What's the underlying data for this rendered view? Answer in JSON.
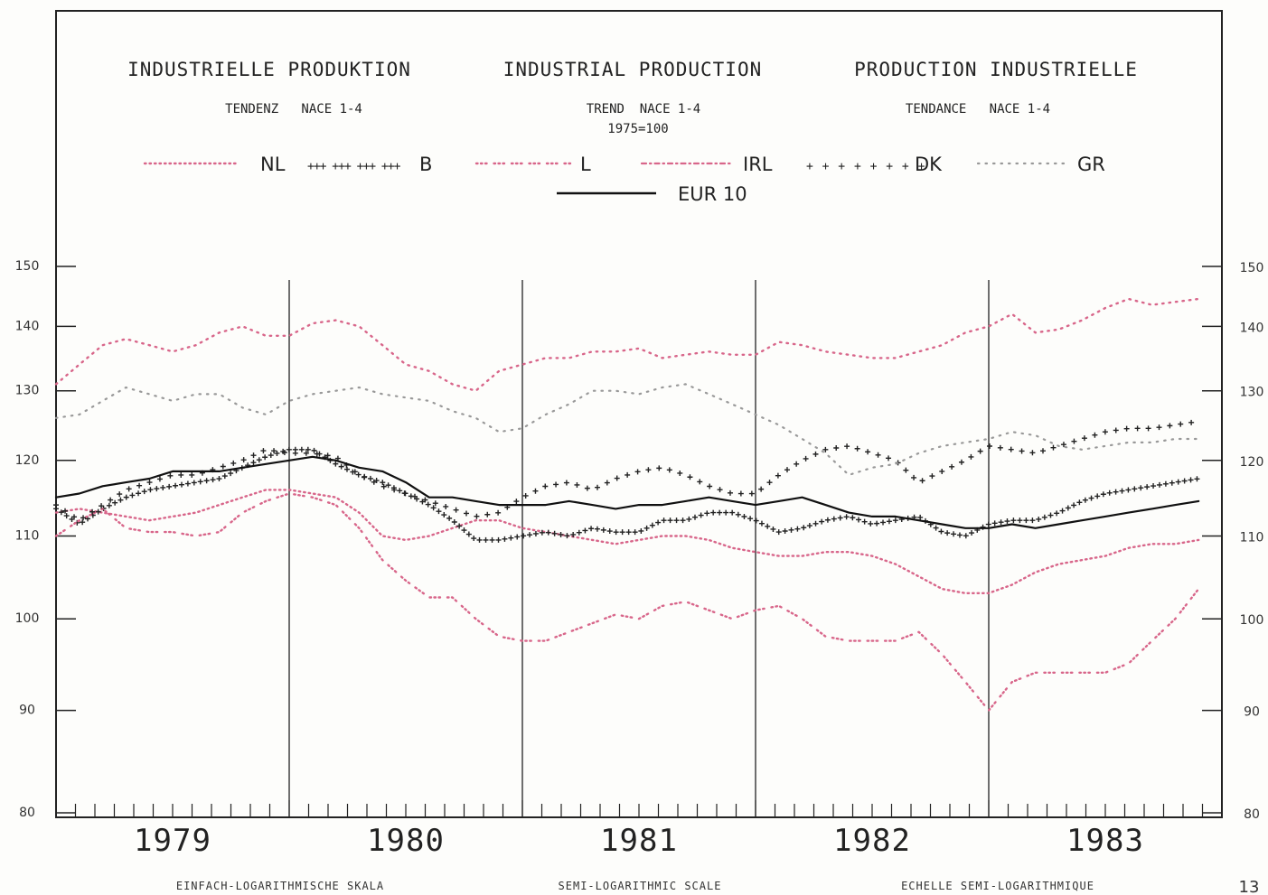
{
  "titles": {
    "de": "INDUSTRIELLE PRODUKTION",
    "en": "INDUSTRIAL PRODUCTION",
    "fr": "PRODUCTION INDUSTRIELLE"
  },
  "subtitles": {
    "de": "TENDENZ   NACE 1-4",
    "en": "TREND  NACE 1-4",
    "en_base": "1975=100",
    "fr": "TENDANCE   NACE 1-4"
  },
  "footer": {
    "de": "EINFACH-LOGARITHMISCHE SKALA",
    "en": "SEMI-LOGARITHMIC SCALE",
    "fr": "ECHELLE SEMI-LOGARITHMIQUE"
  },
  "page_number": "13",
  "chart_data": {
    "type": "line",
    "scale": "semi-logarithmic",
    "ylim": [
      80,
      150
    ],
    "y_ticks": [
      "80",
      "90",
      "100",
      "110",
      "120",
      "130",
      "140",
      "150"
    ],
    "x_range": [
      1979.0,
      1984.0
    ],
    "year_labels": [
      "1979",
      "1980",
      "1981",
      "1982",
      "1983"
    ],
    "year_dividers": [
      1980.0,
      1981.0,
      1982.0,
      1983.0
    ],
    "grid": false,
    "legend_position": "top",
    "series": [
      {
        "name": "NL",
        "style": "dotted",
        "color": "#d8668a",
        "x": [
          1979.0,
          1979.1,
          1979.2,
          1979.3,
          1979.4,
          1979.5,
          1979.6,
          1979.7,
          1979.8,
          1979.9,
          1980.0,
          1980.1,
          1980.2,
          1980.3,
          1980.4,
          1980.5,
          1980.6,
          1980.7,
          1980.8,
          1980.9,
          1981.0,
          1981.1,
          1981.2,
          1981.3,
          1981.4,
          1981.5,
          1981.6,
          1981.7,
          1981.8,
          1981.9,
          1982.0,
          1982.1,
          1982.2,
          1982.3,
          1982.4,
          1982.5,
          1982.6,
          1982.7,
          1982.8,
          1982.9,
          1983.0,
          1983.1,
          1983.2,
          1983.3,
          1983.4,
          1983.5,
          1983.6,
          1983.7,
          1983.8,
          1983.9
        ],
        "y": [
          113,
          113.5,
          113,
          112.5,
          112,
          112.5,
          113,
          114,
          115,
          116,
          116,
          115.5,
          115,
          113,
          110,
          109.5,
          110,
          111,
          112,
          112,
          111,
          110.5,
          110,
          109.5,
          109,
          109.5,
          110,
          110,
          109.5,
          108.5,
          108,
          107.5,
          107.5,
          108,
          108,
          107.5,
          106.5,
          105,
          103.5,
          103,
          103,
          104,
          105.5,
          106.5,
          107,
          107.5,
          108.5,
          109,
          109,
          109.5
        ]
      },
      {
        "name": "B",
        "style": "plus-dense",
        "color": "#222222",
        "x": [
          1979.0,
          1979.1,
          1979.2,
          1979.3,
          1979.4,
          1979.5,
          1979.6,
          1979.7,
          1979.8,
          1979.9,
          1980.0,
          1980.1,
          1980.2,
          1980.3,
          1980.4,
          1980.5,
          1980.6,
          1980.7,
          1980.8,
          1980.9,
          1981.0,
          1981.1,
          1981.2,
          1981.3,
          1981.4,
          1981.5,
          1981.6,
          1981.7,
          1981.8,
          1981.9,
          1982.0,
          1982.1,
          1982.2,
          1982.3,
          1982.4,
          1982.5,
          1982.6,
          1982.7,
          1982.8,
          1982.9,
          1983.0,
          1983.1,
          1983.2,
          1983.3,
          1983.4,
          1983.5,
          1983.6,
          1983.7,
          1983.8,
          1983.9
        ],
        "y": [
          113.5,
          111.5,
          113.5,
          115,
          116,
          116.5,
          117,
          117.5,
          119,
          120.5,
          121.5,
          121.5,
          119.5,
          118,
          117,
          115.5,
          114,
          112,
          109.5,
          109.5,
          110,
          110.5,
          110,
          111,
          110.5,
          110.5,
          112,
          112,
          113,
          113,
          112,
          110.5,
          111,
          112,
          112.5,
          111.5,
          112,
          112.5,
          110.5,
          110,
          111.5,
          112,
          112,
          113,
          114.5,
          115.5,
          116,
          116.5,
          117,
          117.5
        ]
      },
      {
        "name": "L",
        "style": "dotted-sparse",
        "color": "#d8668a",
        "x": [
          1979.0,
          1979.1,
          1979.2,
          1979.3,
          1979.4,
          1979.5,
          1979.6,
          1979.7,
          1979.8,
          1979.9,
          1980.0,
          1980.1,
          1980.2,
          1980.3,
          1980.4,
          1980.5,
          1980.6,
          1980.7,
          1980.8,
          1980.9,
          1981.0,
          1981.1,
          1981.2,
          1981.3,
          1981.4,
          1981.5,
          1981.6,
          1981.7,
          1981.8,
          1981.9,
          1982.0,
          1982.1,
          1982.2,
          1982.3,
          1982.4,
          1982.5,
          1982.6,
          1982.7,
          1982.8,
          1982.9,
          1983.0,
          1983.1,
          1983.2,
          1983.3,
          1983.4,
          1983.5,
          1983.6,
          1983.7,
          1983.8,
          1983.9
        ],
        "y": [
          110,
          112,
          113.5,
          111,
          110.5,
          110.5,
          110,
          110.5,
          113,
          114.5,
          115.5,
          115,
          114,
          111,
          107,
          104.5,
          102.5,
          102.5,
          100,
          98,
          97.5,
          97.5,
          98.5,
          99.5,
          100.5,
          100,
          101.5,
          102,
          101,
          100,
          101,
          101.5,
          100,
          98,
          97.5,
          97.5,
          97.5,
          98.5,
          96,
          93,
          90,
          93,
          94,
          94,
          94,
          94,
          95,
          97.5,
          100,
          103.5
        ]
      },
      {
        "name": "IRL",
        "style": "dashed-dotted",
        "color": "#d8668a",
        "x": [
          1979.0,
          1979.1,
          1979.2,
          1979.3,
          1979.4,
          1979.5,
          1979.6,
          1979.7,
          1979.8,
          1979.9,
          1980.0,
          1980.1,
          1980.2,
          1980.3,
          1980.4,
          1980.5,
          1980.6,
          1980.7,
          1980.8,
          1980.9,
          1981.0,
          1981.1,
          1981.2,
          1981.3,
          1981.4,
          1981.5,
          1981.6,
          1981.7,
          1981.8,
          1981.9,
          1982.0,
          1982.1,
          1982.2,
          1982.3,
          1982.4,
          1982.5,
          1982.6,
          1982.7,
          1982.8,
          1982.9,
          1983.0,
          1983.1,
          1983.2,
          1983.3,
          1983.4,
          1983.5,
          1983.6,
          1983.7,
          1983.8,
          1983.9
        ],
        "y": [
          131,
          134,
          137,
          138,
          137,
          136,
          137,
          139,
          140,
          138.5,
          138.5,
          140.5,
          141,
          140,
          137,
          134,
          133,
          131,
          130,
          133,
          134,
          135,
          135,
          136,
          136,
          136.5,
          135,
          135.5,
          136,
          135.5,
          135.5,
          137.5,
          137,
          136,
          135.5,
          135,
          135,
          136,
          137,
          139,
          140,
          142,
          139,
          139.5,
          141,
          143,
          144.5,
          143.5,
          144,
          144.5
        ]
      },
      {
        "name": "DK",
        "style": "plus-sparse",
        "color": "#222222",
        "x": [
          1979.0,
          1979.1,
          1979.2,
          1979.3,
          1979.4,
          1979.5,
          1979.6,
          1979.7,
          1979.8,
          1979.9,
          1980.0,
          1980.1,
          1980.2,
          1980.3,
          1980.4,
          1980.5,
          1980.6,
          1980.7,
          1980.8,
          1980.9,
          1981.0,
          1981.1,
          1981.2,
          1981.3,
          1981.4,
          1981.5,
          1981.6,
          1981.7,
          1981.8,
          1981.9,
          1982.0,
          1982.1,
          1982.2,
          1982.3,
          1982.4,
          1982.5,
          1982.6,
          1982.7,
          1982.8,
          1982.9,
          1983.0,
          1983.1,
          1983.2,
          1983.3,
          1983.4,
          1983.5,
          1983.6,
          1983.7,
          1983.8,
          1983.9
        ],
        "y": [
          114,
          112,
          114,
          116,
          117,
          118,
          118,
          119,
          120,
          121.5,
          121,
          121,
          120.5,
          118,
          116.5,
          115.5,
          114.5,
          113.5,
          112.5,
          113,
          115,
          116.5,
          117,
          116,
          117.5,
          118.5,
          119,
          118,
          116.5,
          115.5,
          115.5,
          118,
          120,
          121.5,
          122,
          121,
          120,
          117,
          118.5,
          120,
          122,
          121.5,
          121,
          122,
          123,
          124,
          124.5,
          124.5,
          125,
          125.5
        ]
      },
      {
        "name": "GR",
        "style": "dotted-light",
        "color": "#999999",
        "x": [
          1979.0,
          1979.1,
          1979.2,
          1979.3,
          1979.4,
          1979.5,
          1979.6,
          1979.7,
          1979.8,
          1979.9,
          1980.0,
          1980.1,
          1980.2,
          1980.3,
          1980.4,
          1980.5,
          1980.6,
          1980.7,
          1980.8,
          1980.9,
          1981.0,
          1981.1,
          1981.2,
          1981.3,
          1981.4,
          1981.5,
          1981.6,
          1981.7,
          1981.8,
          1981.9,
          1982.0,
          1982.1,
          1982.2,
          1982.3,
          1982.4,
          1982.5,
          1982.6,
          1982.7,
          1982.8,
          1982.9,
          1983.0,
          1983.1,
          1983.2,
          1983.3,
          1983.4,
          1983.5,
          1983.6,
          1983.7,
          1983.8,
          1983.9
        ],
        "y": [
          126,
          126.5,
          128.5,
          130.5,
          129.5,
          128.5,
          129.5,
          129.5,
          127.5,
          126.5,
          128.5,
          129.5,
          130,
          130.5,
          129.5,
          129,
          128.5,
          127,
          126,
          124,
          124.5,
          126.5,
          128,
          130,
          130,
          129.5,
          130.5,
          131,
          129.5,
          128,
          126.5,
          125,
          123,
          121,
          118,
          119,
          119.5,
          121,
          122,
          122.5,
          123,
          124,
          123.5,
          122,
          121.5,
          122,
          122.5,
          122.5,
          123,
          123
        ]
      },
      {
        "name": "EUR 10",
        "style": "solid",
        "color": "#111111",
        "x": [
          1979.0,
          1979.1,
          1979.2,
          1979.3,
          1979.4,
          1979.5,
          1979.6,
          1979.7,
          1979.8,
          1979.9,
          1980.0,
          1980.1,
          1980.2,
          1980.3,
          1980.4,
          1980.5,
          1980.6,
          1980.7,
          1980.8,
          1980.9,
          1981.0,
          1981.1,
          1981.2,
          1981.3,
          1981.4,
          1981.5,
          1981.6,
          1981.7,
          1981.8,
          1981.9,
          1982.0,
          1982.1,
          1982.2,
          1982.3,
          1982.4,
          1982.5,
          1982.6,
          1982.7,
          1982.8,
          1982.9,
          1983.0,
          1983.1,
          1983.2,
          1983.3,
          1983.4,
          1983.5,
          1983.6,
          1983.7,
          1983.8,
          1983.9
        ],
        "y": [
          115,
          115.5,
          116.5,
          117,
          117.5,
          118.5,
          118.5,
          118.5,
          119,
          119.5,
          120,
          120.5,
          120,
          119,
          118.5,
          117,
          115,
          115,
          114.5,
          114,
          114,
          114,
          114.5,
          114,
          113.5,
          114,
          114,
          114.5,
          115,
          114.5,
          114,
          114.5,
          115,
          114,
          113,
          112.5,
          112.5,
          112,
          111.5,
          111,
          111,
          111.5,
          111,
          111.5,
          112,
          112.5,
          113,
          113.5,
          114,
          114.5
        ]
      }
    ]
  }
}
